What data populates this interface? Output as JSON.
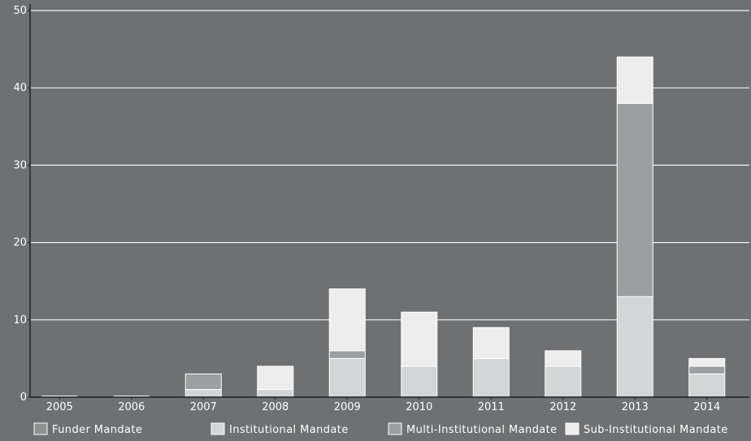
{
  "chart_data": {
    "type": "bar",
    "stacked": true,
    "title": "",
    "xlabel": "",
    "ylabel": "",
    "categories": [
      "2005",
      "2006",
      "2007",
      "2008",
      "2009",
      "2010",
      "2011",
      "2012",
      "2013",
      "2014"
    ],
    "ylim": [
      0,
      50
    ],
    "yticks": [
      0,
      10,
      20,
      30,
      40,
      50
    ],
    "grid": true,
    "legend_position": "bottom",
    "series": [
      {
        "name": "Funder Mandate",
        "color": "#909192",
        "values": [
          0,
          0,
          0,
          0,
          0,
          0,
          0,
          0,
          0,
          0
        ]
      },
      {
        "name": "Institutional Mandate",
        "color": "#d4d5d6",
        "values": [
          0,
          0,
          1,
          1,
          5,
          4,
          5,
          4,
          13,
          3
        ]
      },
      {
        "name": "Multi-Institutional Mandate",
        "color": "#9d9e9f",
        "values": [
          0,
          0,
          2,
          0,
          1,
          0,
          0,
          0,
          25,
          1
        ]
      },
      {
        "name": "Sub-Institutional Mandate",
        "color": "#ededed",
        "values": [
          0,
          0,
          0,
          3,
          8,
          7,
          4,
          2,
          6,
          1
        ]
      }
    ]
  }
}
